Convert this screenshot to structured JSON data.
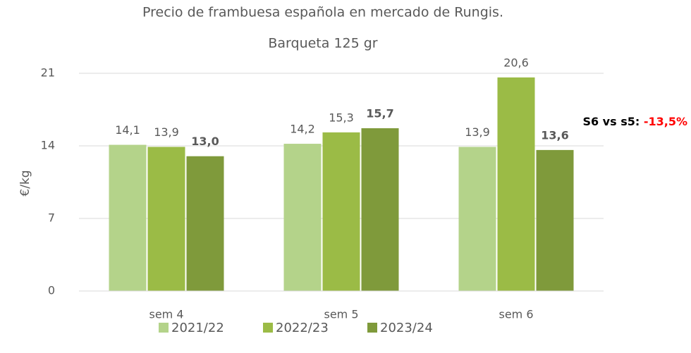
{
  "chart_data": {
    "type": "bar",
    "title": "Precio de frambuesa española en mercado de Rungis.",
    "subtitle": "Barqueta 125 gr",
    "y_label": "€/kg",
    "categories": [
      "sem 4",
      "sem 5",
      "sem 6"
    ],
    "series": [
      {
        "name": "2021/22",
        "color": "#b4d38a",
        "values": [
          14.1,
          14.2,
          13.9
        ],
        "value_labels": [
          "14,1",
          "14,2",
          "13,9"
        ],
        "bold": false
      },
      {
        "name": "2022/23",
        "color": "#9bbb46",
        "values": [
          13.9,
          15.3,
          20.6
        ],
        "value_labels": [
          "13,9",
          "15,3",
          "20,6"
        ],
        "bold": false
      },
      {
        "name": "2023/24",
        "color": "#7f9a3b",
        "values": [
          13.0,
          15.7,
          13.6
        ],
        "value_labels": [
          "13,0",
          "15,7",
          "13,6"
        ],
        "bold": true
      }
    ],
    "ylim": [
      0,
      21
    ],
    "yticks": [
      0,
      7,
      14,
      21
    ],
    "grid": true,
    "legend": "bottom",
    "annotation": {
      "text": "S6 vs s5:",
      "value": "-13,5%",
      "value_color": "#ff0000"
    }
  }
}
